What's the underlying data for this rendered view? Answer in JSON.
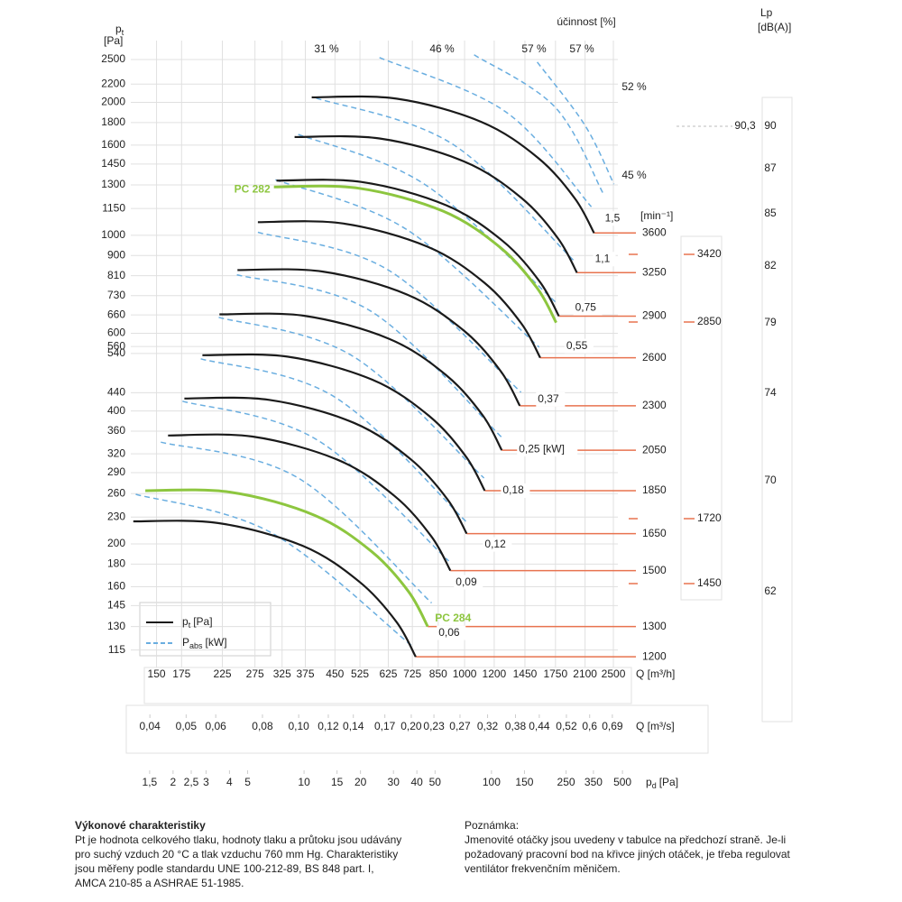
{
  "chart_data": {
    "type": "fan_curves",
    "y_label": {
      "symbol": "p",
      "subscript": "t",
      "unit": "[Pa]"
    },
    "log_y": true,
    "ylim": [
      105,
      2760
    ],
    "yticks": [
      115,
      130,
      145,
      160,
      180,
      200,
      230,
      260,
      290,
      320,
      360,
      400,
      440,
      540,
      560,
      600,
      660,
      730,
      810,
      900,
      1000,
      1150,
      1300,
      1450,
      1600,
      1800,
      2000,
      2200,
      2500
    ],
    "grid": true,
    "x_axes": [
      {
        "label": "Q [m³/h]",
        "log": true,
        "lim": [
          128,
          2570
        ],
        "ticks": [
          150,
          175,
          225,
          275,
          325,
          375,
          450,
          525,
          625,
          725,
          850,
          1000,
          1200,
          1450,
          1750,
          2100,
          2500
        ]
      },
      {
        "label": "Q [m³/s]",
        "log": true,
        "lim": [
          0.03556,
          0.7139
        ],
        "ticks": [
          {
            "value": 0.04,
            "label": "0,04"
          },
          {
            "value": 0.05,
            "label": "0,05"
          },
          {
            "value": 0.06,
            "label": "0,06"
          },
          {
            "value": 0.08,
            "label": "0,08"
          },
          {
            "value": 0.1,
            "label": "0,10"
          },
          {
            "value": 0.12,
            "label": "0,12"
          },
          {
            "value": 0.14,
            "label": "0,14"
          },
          {
            "value": 0.17,
            "label": "0,17"
          },
          {
            "value": 0.2,
            "label": "0,20"
          },
          {
            "value": 0.23,
            "label": "0,23"
          },
          {
            "value": 0.27,
            "label": "0,27"
          },
          {
            "value": 0.32,
            "label": "0,32"
          },
          {
            "value": 0.38,
            "label": "0,38"
          },
          {
            "value": 0.44,
            "label": "0,44"
          },
          {
            "value": 0.52,
            "label": "0,52"
          },
          {
            "value": 0.6,
            "label": "0,6"
          },
          {
            "value": 0.69,
            "label": "0,69"
          }
        ]
      },
      {
        "label": {
          "symbol": "p",
          "subscript": "d",
          "unit": "[Pa]"
        },
        "log": true,
        "lim": [
          1.19,
          558
        ],
        "ticks": [
          {
            "value": 1.5,
            "label": "1,5"
          },
          2,
          {
            "value": 2.5,
            "label": "2,5"
          },
          3,
          4,
          5,
          10,
          15,
          20,
          30,
          40,
          50,
          100,
          150,
          250,
          350,
          500
        ]
      }
    ],
    "rpm_unit": "[min⁻¹]",
    "rpm_color": "#e8734f",
    "series": [
      {
        "rpm": 3600,
        "power_label": "1,5",
        "color": "#1a1a1a",
        "x": [
          390,
          658,
          1108,
          1573,
          1973,
          2219
        ],
        "values": [
          2053,
          2039,
          1807,
          1497,
          1211,
          1012
        ]
      },
      {
        "rpm": 3250,
        "power_label": "1,1",
        "color": "#1a1a1a",
        "x": [
          351,
          592,
          998,
          1416,
          1776,
          1997
        ],
        "values": [
          1669,
          1657,
          1469,
          1217,
          985,
          823
        ]
      },
      {
        "rpm": 2900,
        "power_label": "0,75",
        "color": "#1a1a1a",
        "x": [
          314,
          529,
          892,
          1266,
          1589,
          1787
        ],
        "values": [
          1330,
          1321,
          1170,
          970,
          785,
          656
        ]
      },
      {
        "rpm": 2600,
        "power_label": "0,55",
        "color": "#1a1a1a",
        "x": [
          280,
          472,
          796,
          1129,
          1417,
          1593
        ],
        "values": [
          1071,
          1064,
          942,
          781,
          632,
          528
        ]
      },
      {
        "rpm": 2300,
        "power_label": "0,37",
        "color": "#1a1a1a",
        "x": [
          247,
          416,
          702,
          996,
          1250,
          1405
        ],
        "values": [
          834,
          828,
          734,
          608,
          492,
          411
        ]
      },
      {
        "rpm": 2050,
        "power_label": "0,25 [kW]",
        "color": "#1a1a1a",
        "x": [
          221,
          373,
          628,
          891,
          1118,
          1257
        ],
        "values": [
          662,
          657,
          583,
          483,
          391,
          326
        ]
      },
      {
        "rpm": 1850,
        "power_label": "0,18",
        "color": "#1a1a1a",
        "x": [
          199,
          336,
          566,
          803,
          1007,
          1132
        ],
        "values": [
          535,
          531,
          471,
          390,
          316,
          264
        ]
      },
      {
        "rpm": 1650,
        "power_label": "0,12",
        "color": "#1a1a1a",
        "x": [
          178,
          300,
          506,
          718,
          901,
          1013
        ],
        "values": [
          427,
          424,
          376,
          311,
          252,
          211
        ]
      },
      {
        "rpm": 1500,
        "power_label": "0,09",
        "color": "#1a1a1a",
        "x": [
          161,
          271,
          458,
          649,
          815,
          916
        ],
        "values": [
          352,
          350,
          310,
          257,
          208,
          174
        ]
      },
      {
        "rpm": 1200,
        "color": "#1a1a1a",
        "x": [
          130,
          219,
          369,
          524,
          658,
          740
        ],
        "values": [
          225,
          223,
          198,
          164,
          133,
          111
        ]
      },
      {
        "name": "PC 282",
        "color": "#8dc63f",
        "x": [
          309,
          521,
          878,
          1246,
          1564,
          1758
        ],
        "values": [
          1287,
          1278,
          1133,
          938,
          759,
          634
        ]
      },
      {
        "name": "PC 284",
        "rpm": 1300,
        "power_label": "0,06",
        "color": "#8dc63f",
        "x": [
          140,
          236,
          398,
          565,
          708,
          797
        ],
        "values": [
          264,
          262,
          232,
          192,
          156,
          130
        ]
      }
    ],
    "power_color": "#6aaee0",
    "power_curves": [
      {
        "x": [
          592,
          1287,
          2183
        ],
        "values": [
          2526,
          1904,
          1160
        ]
      },
      {
        "x": [
          1060,
          1748,
          2346
        ],
        "values": [
          2562,
          1949,
          1245
        ]
      },
      {
        "x": [
          1564,
          2100,
          2508
        ],
        "values": [
          2468,
          1773,
          1305
        ]
      },
      {
        "x": [
          401,
          923,
          1965
        ],
        "values": [
          2044,
          1614,
          874
        ]
      },
      {
        "x": [
          359,
          781,
          1748
        ],
        "values": [
          1692,
          1305,
          707
        ]
      },
      {
        "x": [
          312,
          699,
          1582
        ],
        "values": [
          1336,
          1031,
          558
        ]
      },
      {
        "x": [
          280,
          625,
          1415
        ],
        "values": [
          1016,
          834,
          441
        ]
      },
      {
        "x": [
          246,
          560,
          1260
        ],
        "values": [
          814,
          674,
          348
        ]
      },
      {
        "x": [
          220,
          501,
          1127
        ],
        "values": [
          652,
          533,
          282
        ]
      },
      {
        "x": [
          197,
          448,
          1008
        ],
        "values": [
          525,
          431,
          225
        ]
      },
      {
        "x": [
          176,
          401,
          907
        ],
        "values": [
          421,
          345,
          183
        ]
      },
      {
        "x": [
          154,
          359,
          816
        ],
        "values": [
          340,
          282,
          147
        ]
      },
      {
        "x": [
          132,
          304,
          719
        ],
        "values": [
          259,
          212,
          118
        ]
      }
    ],
    "legend": [
      {
        "symbol": "p",
        "subscript": "t",
        "unit": "[Pa]"
      },
      {
        "symbol": "P",
        "subscript": "abs",
        "unit": "[kW]"
      }
    ],
    "efficiency_title": "účinnost [%]",
    "efficiency_labels": [
      "31 %",
      "46 %",
      "57 %",
      "57 %",
      "52 %",
      "45 %"
    ],
    "noise_label": {
      "symbol": "Lp",
      "unit": "[dB(A)]"
    },
    "noise_ticks": [
      90,
      87,
      85,
      82,
      79,
      74,
      70,
      62
    ],
    "noise_marker": "90,3",
    "rpm_marks": [
      "3420",
      "2850",
      "1720",
      "1450"
    ]
  },
  "notes": {
    "left": {
      "title": "Výkonové charakteristiky",
      "lines": [
        "Pt je hodnota celkového tlaku, hodnoty tlaku a průtoku jsou udávány",
        "pro suchý vzduch 20 °C a tlak vzduchu 760 mm Hg. Charakteristiky",
        "jsou měřeny podle standardu UNE 100-212-89, BS 848 part. I,",
        "AMCA 210-85 a ASHRAE 51-1985."
      ]
    },
    "right": {
      "title": "Poznámka:",
      "lines": [
        "Jmenovité otáčky jsou uvedeny v tabulce na předchozí straně. Je-li",
        "požadovaný pracovní bod na křivce jiných otáček, je třeba regulovat",
        "ventilátor frekvenčním měničem."
      ]
    }
  }
}
